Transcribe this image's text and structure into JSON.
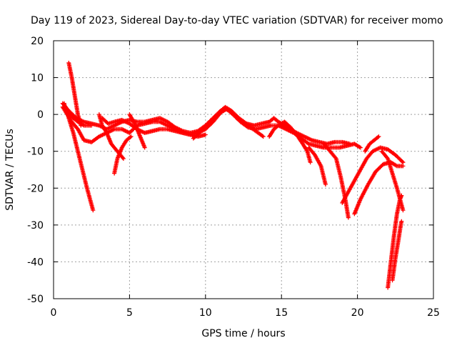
{
  "chart_data": {
    "type": "scatter",
    "title": "Day 119 of 2023, Sidereal Day-to-day VTEC variation (SDTVAR) for receiver momo",
    "xlabel": "GPS time / hours",
    "ylabel": "SDTVAR / TECUs",
    "xlim": [
      0,
      25
    ],
    "ylim": [
      -50,
      20
    ],
    "xticks": [
      0,
      5,
      10,
      15,
      20,
      25
    ],
    "yticks": [
      20,
      10,
      0,
      -10,
      -20,
      -30,
      -40,
      -50
    ],
    "grid": true,
    "legend": "none",
    "marker": "+",
    "series": [
      {
        "name": "SDTVAR",
        "color": "#ff0000",
        "polylines": [
          [
            [
              0.7,
              3
            ],
            [
              0.8,
              1
            ],
            [
              1.0,
              0
            ],
            [
              1.3,
              -1
            ],
            [
              1.6,
              -2
            ],
            [
              2.0,
              -3
            ],
            [
              2.5,
              -3
            ]
          ],
          [
            [
              0.6,
              2
            ],
            [
              0.9,
              0
            ],
            [
              1.2,
              -2
            ],
            [
              1.6,
              -4
            ],
            [
              2.0,
              -7
            ],
            [
              2.5,
              -7.5
            ],
            [
              3.0,
              -6
            ],
            [
              3.5,
              -5
            ],
            [
              4.0,
              -4
            ],
            [
              4.5,
              -4
            ],
            [
              5.0,
              -5
            ],
            [
              5.5,
              -3
            ],
            [
              6.0,
              -2.5
            ],
            [
              6.5,
              -2
            ],
            [
              7.0,
              -2
            ],
            [
              7.5,
              -3
            ],
            [
              8.0,
              -4
            ],
            [
              8.5,
              -5
            ],
            [
              9.0,
              -5.5
            ],
            [
              9.5,
              -5
            ],
            [
              10.0,
              -4
            ],
            [
              10.5,
              -2
            ],
            [
              11.0,
              0.5
            ],
            [
              11.4,
              1.5
            ],
            [
              11.8,
              0
            ],
            [
              12.3,
              -2
            ],
            [
              12.8,
              -3.5
            ],
            [
              13.3,
              -4
            ],
            [
              13.8,
              -3.5
            ],
            [
              14.3,
              -3
            ],
            [
              14.8,
              -3
            ],
            [
              15.3,
              -4
            ],
            [
              15.8,
              -5
            ],
            [
              16.3,
              -6.5
            ],
            [
              16.8,
              -8
            ],
            [
              17.3,
              -8.5
            ],
            [
              17.8,
              -9
            ],
            [
              18.3,
              -9
            ],
            [
              18.8,
              -9
            ],
            [
              19.3,
              -8.5
            ],
            [
              19.8,
              -8
            ],
            [
              20.2,
              -9
            ]
          ],
          [
            [
              0.6,
              3
            ],
            [
              1.0,
              1
            ],
            [
              1.5,
              -1
            ],
            [
              2.0,
              -2
            ],
            [
              2.5,
              -2.5
            ],
            [
              3.0,
              -3
            ],
            [
              3.5,
              -4
            ],
            [
              4.0,
              -3
            ],
            [
              4.5,
              -2
            ],
            [
              5.0,
              -1.5
            ],
            [
              5.5,
              -2
            ],
            [
              6.0,
              -2
            ],
            [
              6.5,
              -1.5
            ],
            [
              7.0,
              -1
            ],
            [
              7.5,
              -2
            ],
            [
              8.0,
              -3.5
            ],
            [
              8.5,
              -4.5
            ],
            [
              9.0,
              -5
            ],
            [
              9.5,
              -4.5
            ],
            [
              10.0,
              -3
            ],
            [
              10.5,
              -1
            ],
            [
              11.0,
              1
            ],
            [
              11.3,
              2
            ],
            [
              11.7,
              1
            ],
            [
              12.2,
              -1
            ],
            [
              12.7,
              -2.5
            ],
            [
              13.2,
              -3
            ],
            [
              13.7,
              -2.5
            ],
            [
              14.2,
              -2
            ],
            [
              14.5,
              -1
            ],
            [
              14.8,
              -2
            ],
            [
              15.2,
              -3
            ],
            [
              15.6,
              -4
            ],
            [
              16.0,
              -5
            ],
            [
              16.5,
              -6
            ],
            [
              17.0,
              -7
            ],
            [
              17.5,
              -7.5
            ],
            [
              18.0,
              -8
            ],
            [
              18.5,
              -7.5
            ],
            [
              19.0,
              -7.5
            ],
            [
              19.5,
              -8
            ]
          ],
          [
            [
              1.0,
              14
            ],
            [
              1.2,
              10
            ],
            [
              1.4,
              5
            ],
            [
              1.6,
              0
            ],
            [
              1.8,
              -3
            ]
          ],
          [
            [
              0.8,
              2
            ],
            [
              1.0,
              -1
            ],
            [
              1.3,
              -5
            ],
            [
              1.6,
              -10
            ],
            [
              1.9,
              -15
            ],
            [
              2.2,
              -20
            ],
            [
              2.4,
              -23
            ],
            [
              2.6,
              -26
            ]
          ],
          [
            [
              3.0,
              0
            ],
            [
              3.2,
              -3
            ],
            [
              3.5,
              -5
            ],
            [
              3.8,
              -8
            ],
            [
              4.2,
              -10
            ],
            [
              4.6,
              -12
            ]
          ],
          [
            [
              4.0,
              -16
            ],
            [
              4.2,
              -12
            ],
            [
              4.5,
              -9
            ],
            [
              4.8,
              -7
            ],
            [
              5.1,
              -6
            ]
          ],
          [
            [
              5.0,
              0
            ],
            [
              5.4,
              -3
            ],
            [
              5.7,
              -6
            ],
            [
              6.0,
              -9
            ]
          ],
          [
            [
              3.2,
              -1
            ],
            [
              3.6,
              -2.5
            ],
            [
              4.0,
              -2
            ],
            [
              4.5,
              -1.5
            ],
            [
              5.0,
              -2.5
            ],
            [
              5.5,
              -4
            ],
            [
              6.0,
              -5
            ],
            [
              6.5,
              -4.5
            ],
            [
              7.0,
              -4
            ],
            [
              7.5,
              -4
            ],
            [
              8.0,
              -4.5
            ],
            [
              8.5,
              -5
            ],
            [
              9.0,
              -5.5
            ],
            [
              9.5,
              -6
            ],
            [
              10.0,
              -5.5
            ]
          ],
          [
            [
              9.2,
              -6.5
            ],
            [
              9.6,
              -5
            ],
            [
              10.0,
              -3
            ],
            [
              10.5,
              -1
            ],
            [
              11.0,
              1
            ],
            [
              11.3,
              1.5
            ],
            [
              11.8,
              0.5
            ],
            [
              12.3,
              -1.5
            ],
            [
              12.8,
              -3
            ],
            [
              13.3,
              -4.5
            ],
            [
              13.8,
              -6
            ]
          ],
          [
            [
              14.2,
              -6
            ],
            [
              14.5,
              -4
            ],
            [
              14.8,
              -3
            ],
            [
              15.2,
              -2
            ],
            [
              15.6,
              -3.5
            ],
            [
              16.0,
              -5.5
            ],
            [
              16.4,
              -8
            ],
            [
              16.7,
              -10
            ],
            [
              16.9,
              -13
            ]
          ],
          [
            [
              16.8,
              -9
            ],
            [
              17.2,
              -11
            ],
            [
              17.6,
              -14
            ],
            [
              17.9,
              -19
            ]
          ],
          [
            [
              17.8,
              -8
            ],
            [
              18.2,
              -10
            ],
            [
              18.6,
              -12
            ],
            [
              18.9,
              -17
            ],
            [
              19.2,
              -23
            ],
            [
              19.4,
              -28
            ]
          ],
          [
            [
              19.0,
              -24
            ],
            [
              19.4,
              -21
            ],
            [
              19.8,
              -18
            ],
            [
              20.2,
              -15
            ],
            [
              20.6,
              -12
            ],
            [
              21.0,
              -10
            ],
            [
              21.5,
              -9
            ],
            [
              22.0,
              -9.5
            ],
            [
              22.5,
              -11
            ],
            [
              23.0,
              -13
            ]
          ],
          [
            [
              19.8,
              -27
            ],
            [
              20.2,
              -23
            ],
            [
              20.7,
              -19
            ],
            [
              21.2,
              -15.5
            ],
            [
              21.7,
              -13.5
            ],
            [
              22.2,
              -13
            ],
            [
              22.6,
              -14
            ],
            [
              23.0,
              -14
            ]
          ],
          [
            [
              20.5,
              -10
            ],
            [
              20.8,
              -8
            ],
            [
              21.1,
              -7
            ],
            [
              21.4,
              -6
            ]
          ],
          [
            [
              21.6,
              -10
            ],
            [
              22.0,
              -12
            ],
            [
              22.3,
              -16
            ],
            [
              22.6,
              -20
            ],
            [
              22.8,
              -23
            ],
            [
              23.0,
              -26
            ]
          ],
          [
            [
              22.0,
              -47
            ],
            [
              22.2,
              -40
            ],
            [
              22.4,
              -33
            ],
            [
              22.6,
              -27
            ],
            [
              22.8,
              -23
            ],
            [
              22.9,
              -22
            ]
          ],
          [
            [
              22.3,
              -45
            ],
            [
              22.5,
              -39
            ],
            [
              22.7,
              -34
            ],
            [
              22.85,
              -30
            ],
            [
              22.9,
              -29
            ]
          ]
        ]
      }
    ]
  }
}
